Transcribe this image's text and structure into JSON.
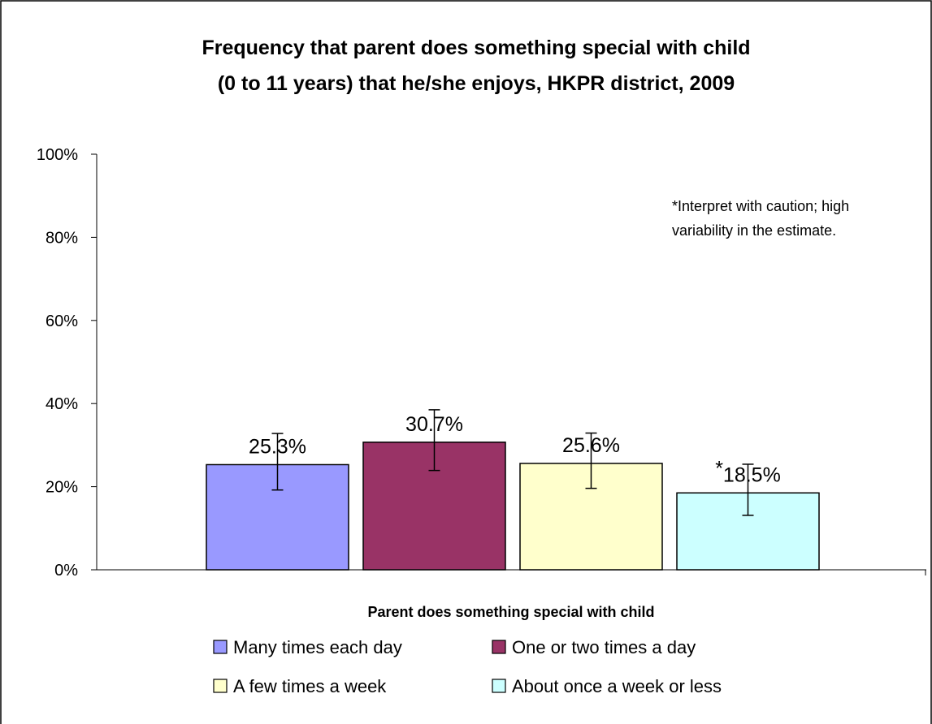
{
  "chart_data": {
    "type": "bar",
    "title_lines": [
      "Frequency that parent does something special with child",
      "(0 to 11 years) that he/she enjoys, HKPR district, 2009"
    ],
    "xlabel": "Parent does something special with child",
    "ylabel": "",
    "ylim": [
      0,
      100
    ],
    "y_ticks": [
      "0%",
      "20%",
      "40%",
      "60%",
      "80%",
      "100%"
    ],
    "y_tick_values": [
      0,
      20,
      40,
      60,
      80,
      100
    ],
    "grid": false,
    "legend_position": "bottom",
    "series": [
      {
        "name": "Many times each day",
        "value": 25.3,
        "label": "25.3%",
        "err_low": 19.2,
        "err_high": 32.8,
        "color": "#9999ff"
      },
      {
        "name": "One or two times a day",
        "value": 30.7,
        "label": "30.7%",
        "err_low": 23.9,
        "err_high": 38.5,
        "color": "#993366"
      },
      {
        "name": "A few times a week",
        "value": 25.6,
        "label": "25.6%",
        "err_low": 19.6,
        "err_high": 32.9,
        "color": "#ffffcc"
      },
      {
        "name": "About once a week or less",
        "value": 18.5,
        "label": "18.5%",
        "err_low": 13.1,
        "err_high": 25.4,
        "color": "#ccffff",
        "flag": "*"
      }
    ],
    "annotation_lines": [
      "*Interpret with caution; high",
      "variability in the estimate."
    ]
  }
}
